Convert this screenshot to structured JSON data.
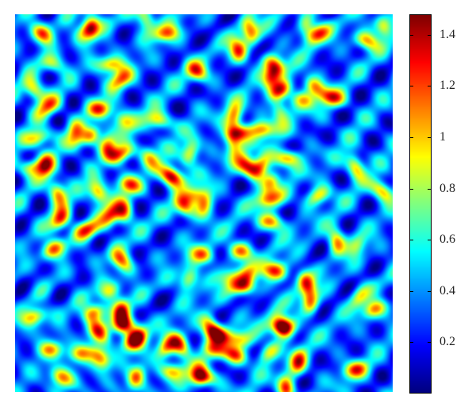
{
  "chart_data": {
    "type": "heatmap",
    "title": "",
    "xlabel": "",
    "ylabel": "",
    "description": "Turing-type labyrinthine spot/stripe pattern field",
    "colormap": "jet",
    "value_range": [
      0.0,
      1.48
    ],
    "grid": false,
    "legend": "none",
    "colorbar": {
      "placement": "right",
      "ticks": [
        {
          "value": 0.2,
          "label": "0.2"
        },
        {
          "value": 0.4,
          "label": "0.4"
        },
        {
          "value": 0.6,
          "label": "0.6"
        },
        {
          "value": 0.8,
          "label": "0.8"
        },
        {
          "value": 1.0,
          "label": "1"
        },
        {
          "value": 1.2,
          "label": "1.2"
        },
        {
          "value": 1.4,
          "label": "1.4"
        }
      ]
    },
    "colors": {
      "low": "#00008f",
      "mid": "#80ff80",
      "high": "#800000"
    },
    "pattern": {
      "peaks": [
        {
          "x": 0.07,
          "y": 0.05
        },
        {
          "x": 0.2,
          "y": 0.03
        },
        {
          "x": 0.4,
          "y": 0.05
        },
        {
          "x": 0.62,
          "y": 0.04
        },
        {
          "x": 0.8,
          "y": 0.05
        },
        {
          "x": 0.93,
          "y": 0.07
        },
        {
          "x": 0.05,
          "y": 0.2
        },
        {
          "x": 0.28,
          "y": 0.17
        },
        {
          "x": 0.48,
          "y": 0.15
        },
        {
          "x": 0.68,
          "y": 0.16
        },
        {
          "x": 0.84,
          "y": 0.22
        },
        {
          "x": 0.2,
          "y": 0.32
        },
        {
          "x": 0.38,
          "y": 0.28
        },
        {
          "x": 0.58,
          "y": 0.27
        },
        {
          "x": 0.72,
          "y": 0.38
        },
        {
          "x": 0.9,
          "y": 0.4
        },
        {
          "x": 0.08,
          "y": 0.4
        },
        {
          "x": 0.3,
          "y": 0.45
        },
        {
          "x": 0.5,
          "y": 0.5
        },
        {
          "x": 0.68,
          "y": 0.55
        },
        {
          "x": 0.85,
          "y": 0.6
        },
        {
          "x": 0.1,
          "y": 0.62
        },
        {
          "x": 0.28,
          "y": 0.65
        },
        {
          "x": 0.46,
          "y": 0.7
        },
        {
          "x": 0.6,
          "y": 0.72
        },
        {
          "x": 0.78,
          "y": 0.76
        },
        {
          "x": 0.95,
          "y": 0.78
        },
        {
          "x": 0.05,
          "y": 0.8
        },
        {
          "x": 0.22,
          "y": 0.84
        },
        {
          "x": 0.4,
          "y": 0.88
        },
        {
          "x": 0.58,
          "y": 0.9
        },
        {
          "x": 0.75,
          "y": 0.92
        },
        {
          "x": 0.9,
          "y": 0.94
        },
        {
          "x": 0.12,
          "y": 0.96
        },
        {
          "x": 0.32,
          "y": 0.96
        },
        {
          "x": 0.5,
          "y": 0.96
        }
      ]
    }
  }
}
